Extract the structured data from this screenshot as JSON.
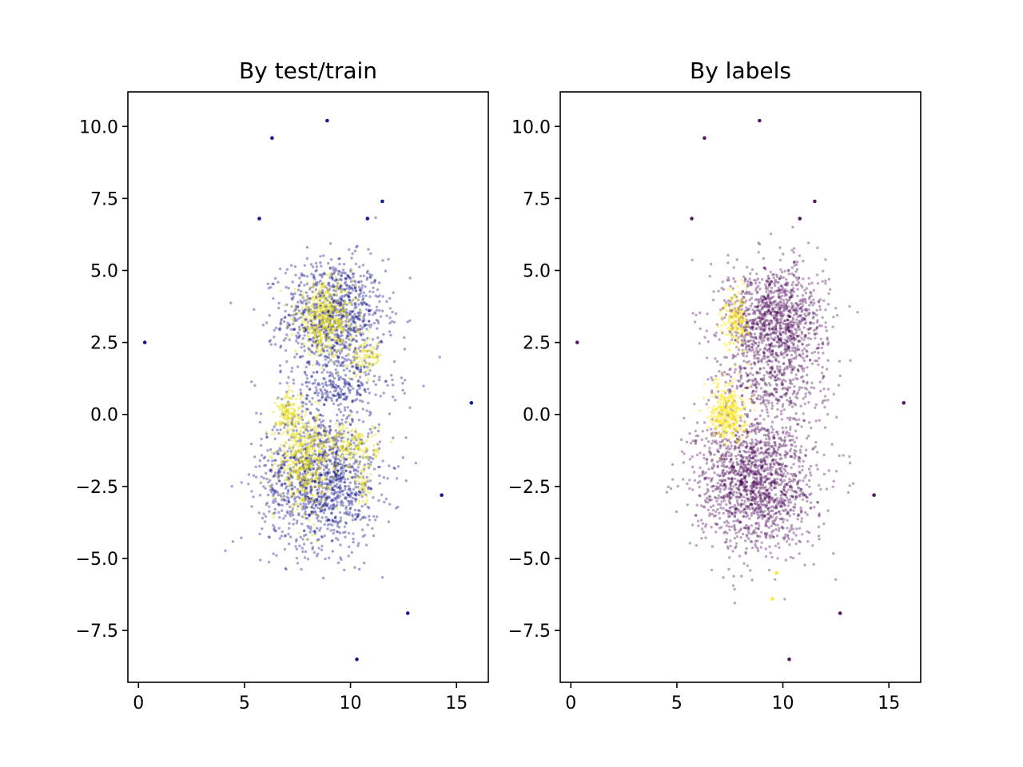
{
  "chart_data": [
    {
      "type": "scatter",
      "title": "By test/train",
      "xlabel": "",
      "ylabel": "",
      "xlim": [
        -0.5,
        16.5
      ],
      "ylim": [
        -9.3,
        11.2
      ],
      "x_ticks": [
        0,
        5,
        10,
        15
      ],
      "x_tick_labels": [
        "0",
        "5",
        "10",
        "15"
      ],
      "y_ticks": [
        -7.5,
        -5.0,
        -2.5,
        0.0,
        2.5,
        5.0,
        7.5,
        10.0
      ],
      "y_tick_labels": [
        "−7.5",
        "−5.0",
        "−2.5",
        "0.0",
        "2.5",
        "5.0",
        "7.5",
        "10.0"
      ],
      "grid": false,
      "legend": "none",
      "series": [
        {
          "color": "#000080",
          "clusters": [
            {
              "center": [
                9.2,
                3.4
              ],
              "spread": [
                1.2,
                1.0
              ],
              "count": 1000
            },
            {
              "center": [
                8.6,
                -2.2
              ],
              "spread": [
                1.4,
                1.2
              ],
              "count": 1300
            },
            {
              "center": [
                9.5,
                0.9
              ],
              "spread": [
                1.3,
                0.5
              ],
              "count": 250
            }
          ],
          "outliers": [
            [
              8.9,
              10.2
            ],
            [
              6.3,
              9.6
            ],
            [
              0.3,
              2.5
            ],
            [
              11.5,
              7.4
            ],
            [
              15.7,
              0.4
            ],
            [
              14.3,
              -2.8
            ],
            [
              12.7,
              -6.9
            ],
            [
              10.3,
              -8.5
            ],
            [
              10.8,
              6.8
            ],
            [
              5.7,
              6.8
            ]
          ]
        },
        {
          "color": "#e6e01e",
          "clusters": [
            {
              "center": [
                8.8,
                3.3
              ],
              "spread": [
                0.7,
                0.6
              ],
              "count": 420
            },
            {
              "center": [
                10.7,
                2.0
              ],
              "spread": [
                0.4,
                0.3
              ],
              "count": 80
            },
            {
              "center": [
                7.8,
                -1.6
              ],
              "spread": [
                0.6,
                0.8
              ],
              "count": 420
            },
            {
              "center": [
                7.1,
                0.0
              ],
              "spread": [
                0.3,
                0.4
              ],
              "count": 120
            },
            {
              "center": [
                10.1,
                -1.1
              ],
              "spread": [
                0.6,
                0.4
              ],
              "count": 160
            },
            {
              "center": [
                10.6,
                -2.5
              ],
              "spread": [
                0.2,
                0.3
              ],
              "count": 40
            }
          ],
          "outliers": []
        }
      ]
    },
    {
      "type": "scatter",
      "title": "By labels",
      "xlabel": "",
      "ylabel": "",
      "xlim": [
        -0.5,
        16.5
      ],
      "ylim": [
        -9.3,
        11.2
      ],
      "x_ticks": [
        0,
        5,
        10,
        15
      ],
      "x_tick_labels": [
        "0",
        "5",
        "10",
        "15"
      ],
      "y_ticks": [
        -7.5,
        -5.0,
        -2.5,
        0.0,
        2.5,
        5.0,
        7.5,
        10.0
      ],
      "y_tick_labels": [
        "−7.5",
        "−5.0",
        "−2.5",
        "0.0",
        "2.5",
        "5.0",
        "7.5",
        "10.0"
      ],
      "grid": false,
      "legend": "none",
      "series": [
        {
          "color": "#440154",
          "clusters": [
            {
              "center": [
                9.6,
                3.2
              ],
              "spread": [
                1.2,
                1.0
              ],
              "count": 1200
            },
            {
              "center": [
                8.7,
                -2.3
              ],
              "spread": [
                1.4,
                1.2
              ],
              "count": 1600
            },
            {
              "center": [
                9.5,
                0.9
              ],
              "spread": [
                1.3,
                0.5
              ],
              "count": 250
            }
          ],
          "outliers": [
            [
              8.9,
              10.2
            ],
            [
              6.3,
              9.6
            ],
            [
              0.3,
              2.5
            ],
            [
              11.5,
              7.4
            ],
            [
              15.7,
              0.4
            ],
            [
              14.3,
              -2.8
            ],
            [
              12.7,
              -6.9
            ],
            [
              10.3,
              -8.5
            ],
            [
              10.8,
              6.8
            ],
            [
              5.7,
              6.8
            ]
          ]
        },
        {
          "color": "#fde725",
          "clusters": [
            {
              "center": [
                7.4,
                0.1
              ],
              "spread": [
                0.4,
                0.5
              ],
              "count": 320
            },
            {
              "center": [
                7.8,
                3.3
              ],
              "spread": [
                0.3,
                0.5
              ],
              "count": 160
            }
          ],
          "outliers": [
            [
              9.7,
              -5.5
            ],
            [
              9.5,
              -6.4
            ]
          ]
        }
      ]
    }
  ]
}
